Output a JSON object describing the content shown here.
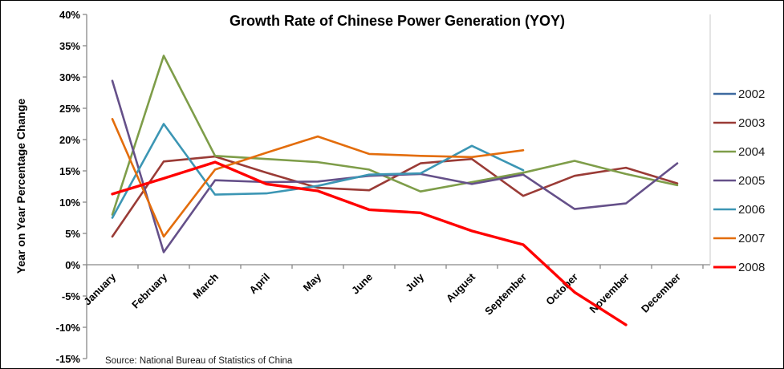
{
  "chart_data": {
    "type": "line",
    "title": "Growth Rate of Chinese Power Generation (YOY)",
    "ylabel": "Year on Year Percentage Change",
    "source": "Source: National Bureau of Statistics of China",
    "categories": [
      "January",
      "February",
      "March",
      "April",
      "May",
      "June",
      "July",
      "August",
      "September",
      "October",
      "November",
      "December"
    ],
    "y_ticks": [
      "40%",
      "35%",
      "30%",
      "25%",
      "20%",
      "15%",
      "10%",
      "5%",
      "0%",
      "-5%",
      "-10%",
      "-15%"
    ],
    "ylim": [
      -15,
      40
    ],
    "ytick_step": 5,
    "grid": false,
    "legend_position": "right",
    "series": [
      {
        "name": "2002",
        "color": "#3E6AA0",
        "values": [
          null,
          null,
          null,
          null,
          null,
          null,
          null,
          null,
          null,
          null,
          null,
          null
        ]
      },
      {
        "name": "2003",
        "color": "#9A3B36",
        "values": [
          4.5,
          16.5,
          17.3,
          14.7,
          12.3,
          11.9,
          16.2,
          16.9,
          11.0,
          14.2,
          15.5,
          13.0
        ]
      },
      {
        "name": "2004",
        "color": "#7E9D49",
        "values": [
          8.0,
          33.4,
          17.4,
          16.9,
          16.4,
          15.2,
          11.7,
          13.2,
          14.7,
          16.6,
          14.5,
          12.7
        ]
      },
      {
        "name": "2005",
        "color": "#655089",
        "values": [
          29.4,
          2.0,
          13.5,
          13.2,
          13.3,
          14.2,
          14.5,
          12.9,
          14.4,
          8.9,
          9.8,
          16.2
        ]
      },
      {
        "name": "2006",
        "color": "#3C96B4",
        "values": [
          7.5,
          22.5,
          11.2,
          11.4,
          12.6,
          14.4,
          14.6,
          19.0,
          15.1,
          null,
          null,
          null
        ]
      },
      {
        "name": "2007",
        "color": "#E36D0C",
        "values": [
          23.3,
          4.5,
          15.2,
          17.9,
          20.5,
          17.7,
          17.4,
          17.2,
          18.3,
          null,
          null,
          null
        ]
      },
      {
        "name": "2008",
        "color": "#FF0000",
        "emphasis": true,
        "values": [
          11.3,
          13.8,
          16.4,
          12.9,
          11.8,
          8.8,
          8.3,
          5.4,
          3.2,
          -4.4,
          -9.6,
          null
        ]
      }
    ]
  }
}
